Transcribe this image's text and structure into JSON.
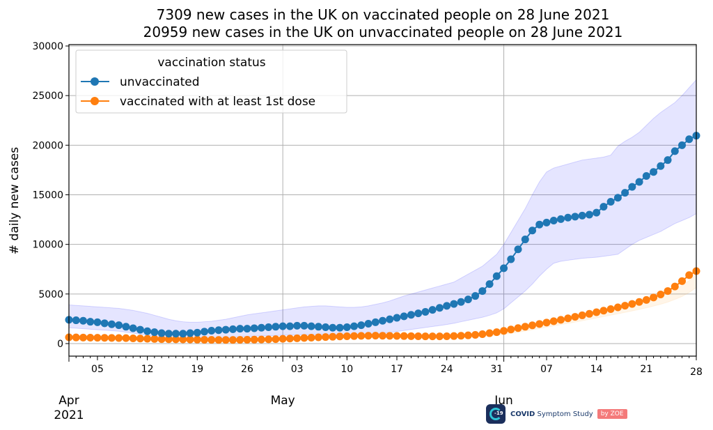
{
  "chart_data": {
    "type": "line",
    "title": [
      "7309 new cases in the UK on vaccinated people on 28 June 2021",
      "20959 new cases in the UK on unvaccinated people on 28 June 2021"
    ],
    "xlabel": "",
    "ylabel": "# daily new cases",
    "ylim": [
      -1300,
      30000
    ],
    "xlim": [
      "2021-04-01",
      "2021-06-28"
    ],
    "x_start": "2021-04-01",
    "y_ticks": [
      0,
      5000,
      10000,
      15000,
      20000,
      25000,
      30000
    ],
    "y_tick_labels": [
      "0",
      "5000",
      "10000",
      "15000",
      "20000",
      "25000",
      "30000"
    ],
    "x_major_ticks": [
      {
        "day": 4,
        "label": "05"
      },
      {
        "day": 11,
        "label": "12"
      },
      {
        "day": 18,
        "label": "19"
      },
      {
        "day": 25,
        "label": "26"
      },
      {
        "day": 32,
        "label": "03"
      },
      {
        "day": 39,
        "label": "10"
      },
      {
        "day": 46,
        "label": "17"
      },
      {
        "day": 53,
        "label": "24"
      },
      {
        "day": 60,
        "label": "31"
      },
      {
        "day": 67,
        "label": "07"
      },
      {
        "day": 74,
        "label": "14"
      },
      {
        "day": 81,
        "label": "21"
      },
      {
        "day": 88,
        "label": "28"
      }
    ],
    "x_month_labels": [
      {
        "day": 0,
        "label": "Apr",
        "year": "2021"
      },
      {
        "day": 30,
        "label": "May",
        "year": ""
      },
      {
        "day": 61,
        "label": "Jun",
        "year": ""
      }
    ],
    "x_vertical_grid_days": [
      30,
      61
    ],
    "grid": true,
    "legend": {
      "title": "vaccination status",
      "placement": "top-left",
      "entries": [
        "unvaccinated",
        "vaccinated with at least 1st dose"
      ]
    },
    "series": [
      {
        "name": "unvaccinated",
        "color": "#1f77b4",
        "band_color": "#0000ff",
        "values": [
          2600,
          2500,
          2450,
          2400,
          2350,
          2300,
          2200,
          2150,
          2050,
          1950,
          1850,
          1700,
          1550,
          1400,
          1250,
          1150,
          1050,
          1000,
          1000,
          1000,
          1050,
          1100,
          1200,
          1300,
          1350,
          1400,
          1450,
          1500,
          1500,
          1550,
          1600,
          1650,
          1700,
          1750,
          1750,
          1800,
          1800,
          1750,
          1700,
          1650,
          1600,
          1600,
          1650,
          1750,
          1850,
          2000,
          2150,
          2300,
          2450,
          2600,
          2750,
          2900,
          3050,
          3200,
          3400,
          3600,
          3800,
          4000,
          4200,
          4450,
          4800,
          5300,
          6000,
          6800,
          7600,
          8500,
          9500,
          10500,
          11400,
          12000,
          12200,
          12400,
          12550,
          12700,
          12800,
          12900,
          13000,
          13200,
          13800,
          14300,
          14700,
          15200,
          15800,
          16300,
          16900,
          17300,
          17900,
          18500,
          19400,
          20000,
          20600,
          20959
        ],
        "lower": [
          1600,
          1550,
          1500,
          1450,
          1400,
          1350,
          1300,
          1250,
          1150,
          1050,
          950,
          850,
          750,
          650,
          550,
          500,
          450,
          420,
          420,
          430,
          450,
          500,
          560,
          620,
          680,
          720,
          750,
          780,
          800,
          820,
          840,
          860,
          880,
          900,
          900,
          920,
          920,
          900,
          880,
          860,
          850,
          860,
          900,
          960,
          1040,
          1120,
          1220,
          1320,
          1420,
          1520,
          1620,
          1720,
          1820,
          1920,
          2050,
          2200,
          2350,
          2500,
          2650,
          2850,
          3100,
          3500,
          4100,
          4700,
          5300,
          6000,
          6800,
          7500,
          8100,
          8300,
          8400,
          8500,
          8600,
          8650,
          8700,
          8800,
          8900,
          9000,
          9500,
          10000,
          10400,
          10700,
          11000,
          11300,
          11700,
          12100,
          12400,
          12700,
          13100,
          13600,
          14200,
          14800,
          15100
        ],
        "upper": [
          3900,
          3850,
          3800,
          3750,
          3700,
          3650,
          3600,
          3550,
          3450,
          3350,
          3200,
          3050,
          2850,
          2650,
          2450,
          2300,
          2200,
          2150,
          2150,
          2200,
          2250,
          2350,
          2450,
          2600,
          2750,
          2900,
          3000,
          3100,
          3200,
          3300,
          3400,
          3500,
          3600,
          3700,
          3750,
          3800,
          3800,
          3750,
          3700,
          3650,
          3650,
          3700,
          3800,
          3950,
          4100,
          4300,
          4550,
          4800,
          5000,
          5200,
          5400,
          5600,
          5800,
          6000,
          6200,
          6600,
          7000,
          7400,
          7800,
          8400,
          9000,
          10000,
          11200,
          12400,
          13600,
          15000,
          16300,
          17300,
          17700,
          17900,
          18100,
          18300,
          18500,
          18600,
          18700,
          18800,
          19000,
          19900,
          20400,
          20800,
          21300,
          22000,
          22700,
          23300,
          23800,
          24300,
          25000,
          25800,
          26600,
          27400,
          28100,
          28500,
          28700
        ]
      },
      {
        "name": "vaccinated with at least 1st dose",
        "color": "#ff7f0e",
        "band_color": "#ffbb66",
        "values": [
          650,
          640,
          630,
          620,
          610,
          600,
          590,
          580,
          570,
          560,
          550,
          530,
          510,
          490,
          470,
          450,
          440,
          430,
          420,
          410,
          400,
          390,
          380,
          370,
          370,
          370,
          380,
          390,
          400,
          410,
          430,
          450,
          480,
          510,
          540,
          570,
          600,
          630,
          660,
          690,
          720,
          740,
          760,
          780,
          790,
          800,
          790,
          780,
          770,
          760,
          750,
          740,
          730,
          730,
          730,
          740,
          760,
          790,
          830,
          880,
          950,
          1050,
          1150,
          1280,
          1420,
          1560,
          1700,
          1840,
          1980,
          2120,
          2260,
          2400,
          2550,
          2700,
          2850,
          3000,
          3160,
          3320,
          3480,
          3650,
          3820,
          4000,
          4200,
          4400,
          4650,
          4950,
          5300,
          5750,
          6300,
          6900,
          7309
        ],
        "lower": [
          550,
          540,
          530,
          520,
          510,
          500,
          490,
          480,
          470,
          460,
          450,
          430,
          410,
          390,
          370,
          350,
          340,
          330,
          320,
          310,
          300,
          290,
          280,
          270,
          270,
          270,
          280,
          290,
          300,
          310,
          330,
          350,
          380,
          410,
          440,
          470,
          500,
          530,
          560,
          590,
          620,
          640,
          660,
          680,
          690,
          700,
          690,
          680,
          670,
          660,
          650,
          640,
          630,
          630,
          630,
          640,
          660,
          690,
          730,
          780,
          840,
          930,
          1020,
          1140,
          1260,
          1390,
          1520,
          1650,
          1780,
          1910,
          2040,
          2170,
          2300,
          2440,
          2580,
          2720,
          2860,
          3000,
          3140,
          3290,
          3440,
          3600,
          3780,
          3960,
          4180,
          4450,
          4750,
          5150,
          5650,
          6200,
          6700
        ],
        "upper": [
          750,
          740,
          730,
          720,
          710,
          700,
          690,
          680,
          670,
          660,
          650,
          630,
          610,
          590,
          570,
          550,
          540,
          530,
          520,
          510,
          500,
          490,
          480,
          470,
          470,
          470,
          480,
          490,
          500,
          510,
          530,
          550,
          580,
          610,
          640,
          670,
          700,
          730,
          760,
          790,
          820,
          840,
          860,
          880,
          890,
          900,
          890,
          880,
          870,
          860,
          850,
          840,
          830,
          830,
          830,
          840,
          860,
          890,
          930,
          980,
          1060,
          1170,
          1280,
          1420,
          1580,
          1730,
          1880,
          2030,
          2180,
          2330,
          2480,
          2630,
          2800,
          2960,
          3120,
          3280,
          3460,
          3640,
          3820,
          4010,
          4200,
          4400,
          4620,
          4840,
          5120,
          5450,
          5850,
          6350,
          6950,
          7600,
          7950
        ]
      }
    ]
  },
  "logo": {
    "badge_text": "-19",
    "brand_bold": "COVID",
    "brand_rest": " Symptom Study",
    "zoe_label": "by ZOE"
  }
}
